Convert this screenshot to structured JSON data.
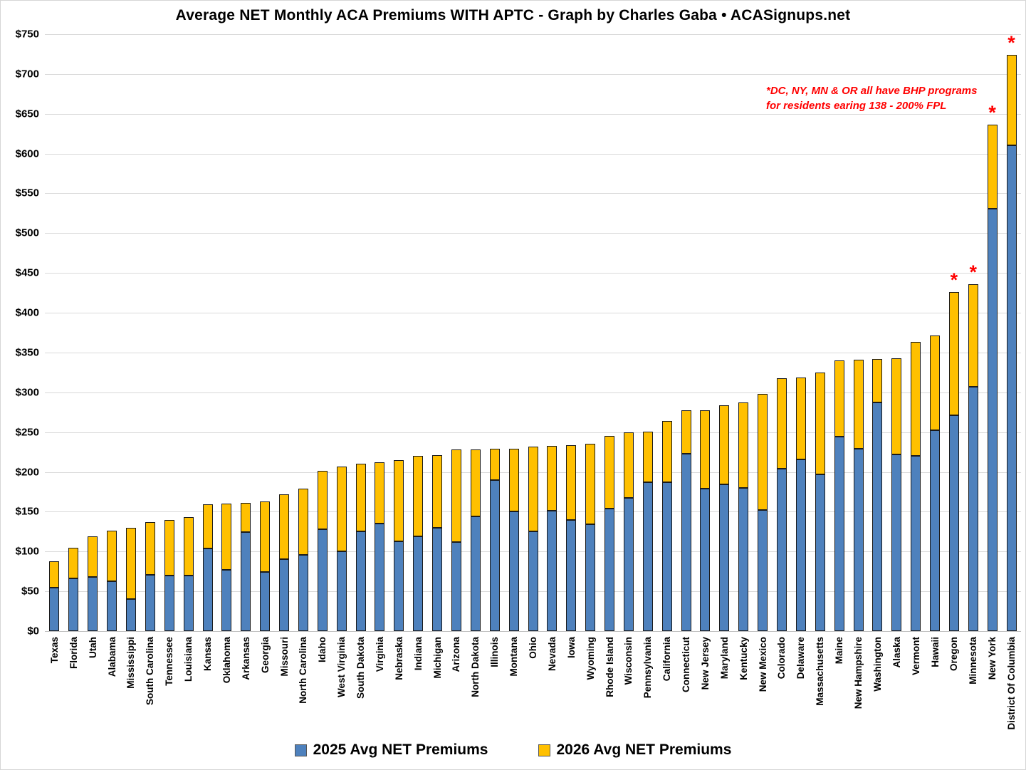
{
  "title": "Average NET Monthly ACA Premiums WITH APTC - Graph by Charles Gaba • ACASignups.net",
  "annotation": {
    "line1": "*DC, NY, MN & OR all have BHP programs",
    "line2": "for residents earing 138 - 200% FPL"
  },
  "legend": {
    "items": [
      {
        "label": "2025 Avg NET Premiums",
        "color": "#4E81BD"
      },
      {
        "label": "2026 Avg NET Premiums",
        "color": "#FFC000"
      }
    ]
  },
  "chart_data": {
    "type": "bar",
    "title": "Average NET Monthly ACA Premiums WITH APTC - Graph by Charles Gaba • ACASignups.net",
    "xlabel": "",
    "ylabel": "",
    "ylim": [
      0,
      750
    ],
    "ytick_interval": 50,
    "ytick_prefix": "$",
    "grid": true,
    "legend_position": "bottom",
    "bar_style": "2025 bar drawn in front of taller 2026 bar (overlay stack look)",
    "categories": [
      "Texas",
      "Florida",
      "Utah",
      "Alabama",
      "Mississippi",
      "South Carolina",
      "Tennessee",
      "Louisiana",
      "Kansas",
      "Oklahoma",
      "Arkansas",
      "Georgia",
      "Missouri",
      "North Carolina",
      "Idaho",
      "West Virginia",
      "South Dakota",
      "Virginia",
      "Nebraska",
      "Indiana",
      "Michigan",
      "Arizona",
      "North Dakota",
      "Illinois",
      "Montana",
      "Ohio",
      "Nevada",
      "Iowa",
      "Wyoming",
      "Rhode Island",
      "Wisconsin",
      "Pennsylvania",
      "California",
      "Connecticut",
      "New Jersey",
      "Maryland",
      "Kentucky",
      "New Mexico",
      "Colorado",
      "Delaware",
      "Massachusetts",
      "Maine",
      "New Hampshire",
      "Washington",
      "Alaska",
      "Vermont",
      "Hawaii",
      "Oregon",
      "Minnesota",
      "New York",
      "District Of Columbia"
    ],
    "series": [
      {
        "name": "2025 Avg NET Premiums",
        "color": "#4E81BD",
        "values": [
          55,
          66,
          68,
          63,
          40,
          71,
          70,
          70,
          104,
          77,
          124,
          74,
          90,
          96,
          128,
          100,
          125,
          135,
          113,
          119,
          130,
          112,
          144,
          190,
          150,
          125,
          151,
          140,
          134,
          154,
          167,
          187,
          187,
          223,
          179,
          184,
          180,
          152,
          204,
          216,
          197,
          244,
          229,
          287,
          222,
          220,
          252,
          271,
          307,
          531,
          610
        ]
      },
      {
        "name": "2026 Avg NET Premiums",
        "color": "#FFC000",
        "values": [
          88,
          105,
          119,
          126,
          130,
          137,
          140,
          143,
          159,
          160,
          161,
          163,
          172,
          179,
          201,
          207,
          210,
          212,
          215,
          220,
          221,
          228,
          228,
          229,
          229,
          232,
          233,
          234,
          235,
          245,
          250,
          251,
          264,
          277,
          277,
          284,
          287,
          298,
          318,
          319,
          325,
          340,
          341,
          342,
          343,
          363,
          371,
          426,
          436,
          636,
          724
        ]
      }
    ],
    "asterisk_states": [
      "Oregon",
      "Minnesota",
      "New York",
      "District Of Columbia"
    ],
    "asterisk_color": "#FF0000"
  }
}
